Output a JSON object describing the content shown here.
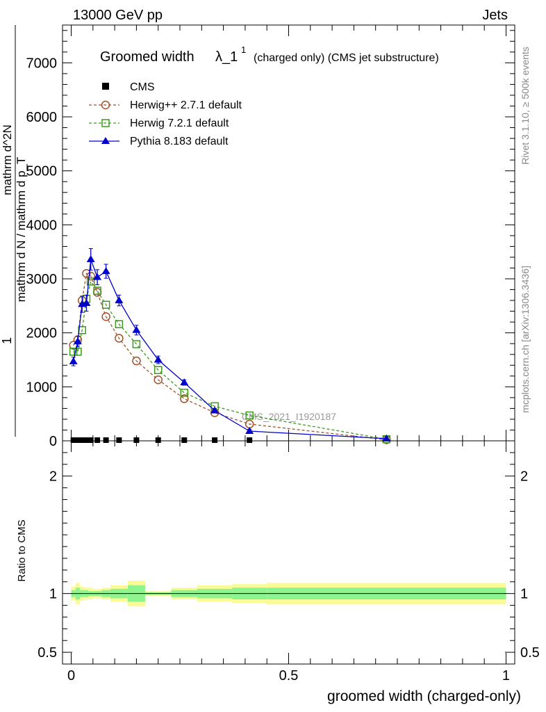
{
  "header": {
    "left": "13000 GeV pp",
    "right": "Jets"
  },
  "side_labels": {
    "rivet": "Rivet 3.1.10, ≥ 500k events",
    "mcplots": "mcplots.cern.ch [arXiv:1306.3436]"
  },
  "chart_data": {
    "type": "line",
    "title": "Groomed width",
    "title_symbol": "λ_1",
    "title_superscript": "1",
    "title_suffix": "(charged only) (CMS jet substructure)",
    "watermark": "CMS_2021_I1920187",
    "xlabel": "groomed width (charged-only)",
    "ylabel_main": {
      "numerator_prefix": "1",
      "numerator": "mathrm d N / mathrm d p_T mathrm d lambda",
      "denominator": "mathrm d^2N / mathrm d p_T mathrm d lambda",
      "num_top": "mathrm d^2N",
      "den_bottom": "mathrm d N / mathrm d p_T",
      "one": "1"
    },
    "ylabel_ratio": "Ratio to CMS",
    "xlim": [
      -0.02,
      1.02
    ],
    "ylim_main": [
      0,
      7700
    ],
    "ylim_ratio": [
      0.4,
      2.3
    ],
    "x_ticks": [
      0,
      0.5,
      1
    ],
    "x_tick_labels": [
      "0",
      "0.5",
      "1"
    ],
    "y_ticks_main": [
      0,
      1000,
      2000,
      3000,
      4000,
      5000,
      6000,
      7000
    ],
    "y_tick_labels_main": [
      "0",
      "1000",
      "2000",
      "3000",
      "4000",
      "5000",
      "6000",
      "7000"
    ],
    "y_ticks_ratio": [
      0.5,
      1,
      2
    ],
    "y_tick_labels_ratio": [
      "0.5",
      "1",
      "2"
    ],
    "legend": [
      "CMS",
      "Herwig++ 2.7.1 default",
      "Herwig 7.2.1 default",
      "Pythia 8.183 default"
    ],
    "legend_position": "top-left",
    "series": [
      {
        "name": "CMS",
        "color": "#000000",
        "marker": "square-filled",
        "x": [
          0.005,
          0.015,
          0.025,
          0.035,
          0.045,
          0.06,
          0.08,
          0.11,
          0.15,
          0.2,
          0.26,
          0.33,
          0.41
        ],
        "values": [
          0,
          0,
          0,
          0,
          0,
          0,
          0,
          0,
          0,
          0,
          0,
          0,
          0
        ]
      },
      {
        "name": "Herwig++ 2.7.1 default",
        "color": "#a0522d",
        "marker": "circle-open",
        "x": [
          0.005,
          0.015,
          0.025,
          0.035,
          0.045,
          0.06,
          0.08,
          0.11,
          0.15,
          0.2,
          0.26,
          0.33,
          0.41,
          0.725
        ],
        "values": [
          1770,
          1870,
          2600,
          3100,
          3050,
          2750,
          2300,
          1900,
          1480,
          1130,
          780,
          520,
          310,
          20
        ]
      },
      {
        "name": "Herwig 7.2.1 default",
        "color": "#3a9a1a",
        "marker": "square-open",
        "x": [
          0.005,
          0.015,
          0.025,
          0.035,
          0.045,
          0.06,
          0.08,
          0.11,
          0.15,
          0.2,
          0.26,
          0.33,
          0.41,
          0.725
        ],
        "values": [
          1650,
          1650,
          2050,
          2630,
          2950,
          2780,
          2520,
          2160,
          1790,
          1310,
          890,
          640,
          470,
          30
        ]
      },
      {
        "name": "Pythia 8.183 default",
        "color": "#0000cc",
        "marker": "triangle-filled",
        "x": [
          0.005,
          0.015,
          0.025,
          0.035,
          0.045,
          0.06,
          0.08,
          0.11,
          0.15,
          0.2,
          0.26,
          0.33,
          0.41,
          0.725
        ],
        "values": [
          1470,
          1840,
          2530,
          2550,
          3360,
          3030,
          3140,
          2600,
          2050,
          1500,
          1080,
          560,
          180,
          40
        ],
        "errors": [
          80,
          100,
          150,
          150,
          200,
          140,
          130,
          100,
          90,
          70,
          50,
          40,
          30,
          10
        ]
      }
    ],
    "ratio_bands": {
      "edges": [
        0,
        0.01,
        0.02,
        0.03,
        0.04,
        0.05,
        0.07,
        0.09,
        0.13,
        0.17,
        0.23,
        0.29,
        0.37,
        0.45,
        1.0
      ],
      "inner_lo": [
        0.97,
        0.95,
        0.97,
        0.97,
        0.98,
        0.98,
        0.97,
        0.96,
        0.93,
        0.99,
        0.97,
        0.96,
        0.95,
        0.95
      ],
      "inner_hi": [
        1.03,
        1.05,
        1.03,
        1.03,
        1.02,
        1.02,
        1.03,
        1.04,
        1.07,
        1.01,
        1.03,
        1.04,
        1.05,
        1.05
      ],
      "outer_lo": [
        0.94,
        0.91,
        0.94,
        0.95,
        0.95,
        0.96,
        0.95,
        0.93,
        0.89,
        0.98,
        0.95,
        0.93,
        0.92,
        0.91
      ],
      "outer_hi": [
        1.06,
        1.09,
        1.06,
        1.05,
        1.05,
        1.04,
        1.05,
        1.07,
        1.11,
        1.02,
        1.05,
        1.07,
        1.08,
        1.09
      ],
      "inner_color": "#8ef58e",
      "outer_color": "#fafa96"
    }
  }
}
